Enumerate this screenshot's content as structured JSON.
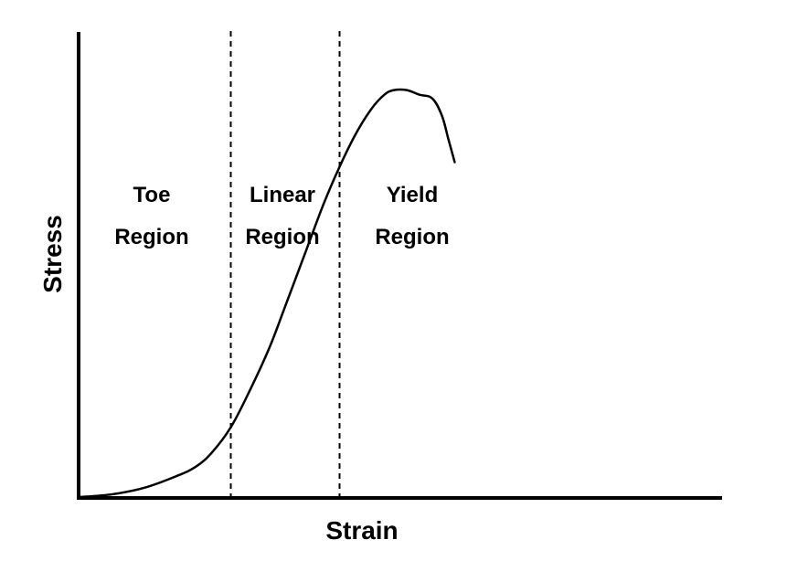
{
  "chart_data": {
    "type": "line",
    "title": "",
    "xlabel": "Strain",
    "ylabel": "Stress",
    "xlim": [
      0,
      100
    ],
    "ylim": [
      0,
      100
    ],
    "grid": false,
    "axis_ticks": false,
    "series": [
      {
        "values_xy": [
          [
            0,
            0
          ],
          [
            5,
            0.6
          ],
          [
            10,
            2
          ],
          [
            15,
            4.5
          ],
          [
            18,
            6.5
          ],
          [
            20.5,
            9.5
          ],
          [
            23.5,
            15
          ],
          [
            26.5,
            23
          ],
          [
            29.5,
            32
          ],
          [
            32,
            41
          ],
          [
            35,
            52
          ],
          [
            38,
            63
          ],
          [
            40.5,
            71
          ],
          [
            43,
            78
          ],
          [
            45.5,
            83.5
          ],
          [
            47.5,
            86.5
          ],
          [
            49,
            87.5
          ],
          [
            51,
            87.5
          ],
          [
            53,
            86.5
          ],
          [
            55,
            85.7
          ],
          [
            56.5,
            82
          ],
          [
            57.5,
            77
          ],
          [
            58.5,
            72
          ]
        ]
      }
    ],
    "regions": [
      {
        "line1": "Toe",
        "line2": "Region"
      },
      {
        "line1": "Linear",
        "line2": "Region"
      },
      {
        "line1": "Yield",
        "line2": "Region"
      }
    ],
    "region_boundaries_x": [
      23.5,
      40.5
    ]
  }
}
